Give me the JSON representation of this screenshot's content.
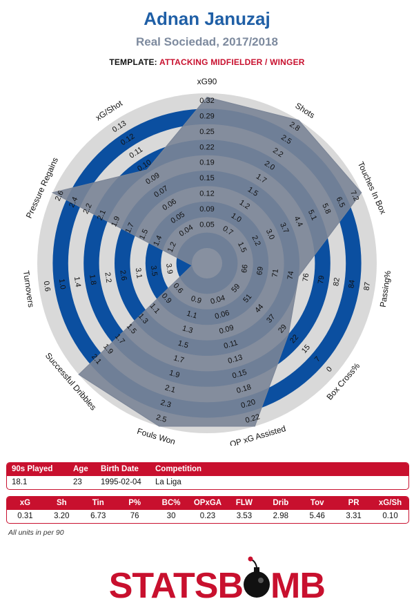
{
  "header": {
    "title": "Adnan Januzaj",
    "subtitle": "Real Sociedad, 2017/2018",
    "template_label": "TEMPLATE:",
    "template_value": "ATTACKING MIDFIELDER / WINGER"
  },
  "colors": {
    "title": "#1f5fa6",
    "subtitle": "#7d8a9e",
    "accent_red": "#c8102e",
    "ring_gray": "#d9d9d9",
    "ring_blue": "#0b4fa0",
    "radar_fill": "#7a8496"
  },
  "chart_data": {
    "type": "radar",
    "title": "Adnan Januzaj",
    "axes": [
      {
        "label": "xG90",
        "ticks": [
          "0.05",
          "0.09",
          "0.12",
          "0.15",
          "0.19",
          "0.22",
          "0.25",
          "0.29",
          "0.32"
        ],
        "value": 0.31
      },
      {
        "label": "Shots",
        "ticks": [
          "0.7",
          "1.0",
          "1.2",
          "1.5",
          "1.7",
          "2.0",
          "2.2",
          "2.5",
          "2.8"
        ],
        "value": 3.2
      },
      {
        "label": "Touches In Box",
        "ticks": [
          "1.5",
          "2.2",
          "3.0",
          "3.7",
          "4.4",
          "5.1",
          "5.8",
          "6.5",
          "7.2"
        ],
        "value": 6.73
      },
      {
        "label": "Passing%",
        "ticks": [
          "66",
          "69",
          "71",
          "74",
          "76",
          "79",
          "82",
          "84",
          "87"
        ],
        "value": 76
      },
      {
        "label": "Box Cross%",
        "ticks": [
          "59",
          "51",
          "44",
          "37",
          "29",
          "22",
          "15",
          "7",
          "0"
        ],
        "value": 30
      },
      {
        "label": "OP xG Assisted",
        "ticks": [
          "0.04",
          "0.06",
          "0.09",
          "0.11",
          "0.13",
          "0.15",
          "0.18",
          "0.20",
          "0.22"
        ],
        "value": 0.23
      },
      {
        "label": "Fouls Won",
        "ticks": [
          "0.9",
          "1.1",
          "1.3",
          "1.5",
          "1.7",
          "1.9",
          "2.1",
          "2.3",
          "2.5"
        ],
        "value": 3.53
      },
      {
        "label": "Successful Dribbles",
        "ticks": [
          "0.6",
          "0.9",
          "1.1",
          "1.3",
          "1.5",
          "1.7",
          "1.9",
          "2.1"
        ],
        "value": 2.98
      },
      {
        "label": "Turnovers",
        "ticks": [
          "3.9",
          "3.5",
          "3.1",
          "2.6",
          "2.2",
          "1.8",
          "1.4",
          "1.0",
          "0.6"
        ],
        "value": 5.46
      },
      {
        "label": "Pressure Regains",
        "ticks": [
          "1.2",
          "1.4",
          "1.5",
          "1.7",
          "1.9",
          "2.1",
          "2.2",
          "2.4",
          "2.6"
        ],
        "value": 3.31
      },
      {
        "label": "xG/Shot",
        "ticks": [
          "0.04",
          "0.05",
          "0.06",
          "0.07",
          "0.09",
          "0.10",
          "0.11",
          "0.12",
          "0.13"
        ],
        "value": 0.1
      }
    ],
    "radar_levels": [
      0.975,
      1.0,
      1.0,
      0.5,
      0.6,
      1.0,
      1.0,
      1.0,
      0.0,
      1.0,
      0.62
    ]
  },
  "info_table": {
    "headers": [
      "90s Played",
      "Age",
      "Birth Date",
      "Competition"
    ],
    "values": [
      "18.1",
      "23",
      "1995-02-04",
      "La Liga"
    ]
  },
  "stats_table": {
    "headers": [
      "xG",
      "Sh",
      "Tin",
      "P%",
      "BC%",
      "OPxGA",
      "FLW",
      "Drib",
      "Tov",
      "PR",
      "xG/Sh"
    ],
    "values": [
      "0.31",
      "3.20",
      "6.73",
      "76",
      "30",
      "0.23",
      "3.53",
      "2.98",
      "5.46",
      "3.31",
      "0.10"
    ]
  },
  "footnote": "All units in per 90",
  "logo": {
    "text": "STATSBOMB"
  }
}
